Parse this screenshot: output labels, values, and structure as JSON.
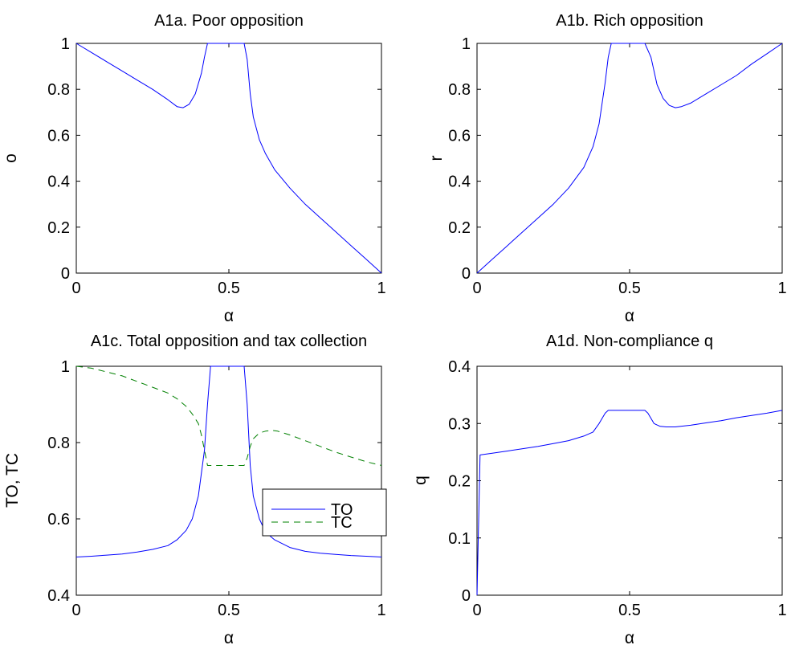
{
  "chart_data": [
    {
      "type": "line",
      "title": "A1a. Poor opposition",
      "xlabel": "α",
      "ylabel": "o",
      "xlim": [
        0,
        1
      ],
      "ylim": [
        0,
        1
      ],
      "xticks": [
        "0",
        "0.5",
        "1"
      ],
      "yticks": [
        "0",
        "0.2",
        "0.4",
        "0.6",
        "0.8",
        "1"
      ],
      "grid": false,
      "series": [
        {
          "color": "#0000ff",
          "dash": "solid",
          "x": [
            0,
            0.05,
            0.1,
            0.15,
            0.2,
            0.25,
            0.3,
            0.33,
            0.35,
            0.37,
            0.39,
            0.41,
            0.42,
            0.43,
            0.5,
            0.55,
            0.56,
            0.57,
            0.58,
            0.6,
            0.62,
            0.65,
            0.7,
            0.75,
            0.8,
            0.85,
            0.9,
            0.95,
            1.0
          ],
          "y": [
            1.0,
            0.96,
            0.92,
            0.88,
            0.84,
            0.8,
            0.755,
            0.725,
            0.72,
            0.735,
            0.78,
            0.87,
            0.94,
            1.0,
            1.0,
            1.0,
            0.93,
            0.78,
            0.68,
            0.58,
            0.52,
            0.45,
            0.37,
            0.3,
            0.24,
            0.18,
            0.12,
            0.06,
            0.0
          ]
        }
      ]
    },
    {
      "type": "line",
      "title": "A1b. Rich opposition",
      "xlabel": "α",
      "ylabel": "r",
      "xlim": [
        0,
        1
      ],
      "ylim": [
        0,
        1
      ],
      "xticks": [
        "0",
        "0.5",
        "1"
      ],
      "yticks": [
        "0",
        "0.2",
        "0.4",
        "0.6",
        "0.8",
        "1"
      ],
      "grid": false,
      "series": [
        {
          "color": "#0000ff",
          "dash": "solid",
          "x": [
            0,
            0.05,
            0.1,
            0.15,
            0.2,
            0.25,
            0.3,
            0.35,
            0.38,
            0.4,
            0.42,
            0.43,
            0.44,
            0.45,
            0.5,
            0.55,
            0.57,
            0.59,
            0.61,
            0.63,
            0.65,
            0.67,
            0.7,
            0.75,
            0.8,
            0.85,
            0.9,
            0.95,
            1.0
          ],
          "y": [
            0.0,
            0.06,
            0.12,
            0.18,
            0.24,
            0.3,
            0.37,
            0.46,
            0.55,
            0.65,
            0.83,
            0.94,
            1.0,
            1.0,
            1.0,
            1.0,
            0.94,
            0.82,
            0.76,
            0.73,
            0.72,
            0.725,
            0.74,
            0.78,
            0.82,
            0.86,
            0.91,
            0.955,
            1.0
          ]
        }
      ]
    },
    {
      "type": "line",
      "title": "A1c. Total opposition and tax collection",
      "xlabel": "α",
      "ylabel": "TO, TC",
      "xlim": [
        0,
        1
      ],
      "ylim": [
        0.4,
        1
      ],
      "xticks": [
        "0",
        "0.5",
        "1"
      ],
      "yticks": [
        "0.4",
        "0.6",
        "0.8",
        "1"
      ],
      "grid": false,
      "legend": "center-right",
      "series": [
        {
          "name": "TO",
          "color": "#0000ff",
          "dash": "solid",
          "x": [
            0,
            0.05,
            0.1,
            0.15,
            0.2,
            0.25,
            0.3,
            0.33,
            0.36,
            0.38,
            0.4,
            0.42,
            0.43,
            0.44,
            0.5,
            0.55,
            0.56,
            0.57,
            0.58,
            0.6,
            0.62,
            0.65,
            0.7,
            0.75,
            0.8,
            0.85,
            0.9,
            0.95,
            1.0
          ],
          "y": [
            0.5,
            0.502,
            0.505,
            0.508,
            0.513,
            0.52,
            0.53,
            0.545,
            0.57,
            0.6,
            0.66,
            0.78,
            0.9,
            1.0,
            1.0,
            1.0,
            0.9,
            0.74,
            0.66,
            0.6,
            0.565,
            0.545,
            0.525,
            0.515,
            0.51,
            0.507,
            0.504,
            0.502,
            0.5
          ]
        },
        {
          "name": "TC",
          "color": "#008000",
          "dash": "dashed",
          "x": [
            0,
            0.05,
            0.1,
            0.15,
            0.2,
            0.25,
            0.3,
            0.33,
            0.36,
            0.38,
            0.4,
            0.41,
            0.42,
            0.43,
            0.5,
            0.55,
            0.56,
            0.57,
            0.58,
            0.6,
            0.62,
            0.64,
            0.66,
            0.7,
            0.75,
            0.8,
            0.85,
            0.9,
            0.95,
            1.0
          ],
          "y": [
            1.0,
            0.995,
            0.985,
            0.975,
            0.96,
            0.945,
            0.93,
            0.915,
            0.895,
            0.875,
            0.85,
            0.82,
            0.78,
            0.74,
            0.74,
            0.74,
            0.76,
            0.79,
            0.81,
            0.825,
            0.83,
            0.832,
            0.83,
            0.82,
            0.805,
            0.79,
            0.775,
            0.762,
            0.75,
            0.74
          ]
        }
      ]
    },
    {
      "type": "line",
      "title": "A1d. Non-compliance q",
      "xlabel": "α",
      "ylabel": "q",
      "xlim": [
        0,
        1
      ],
      "ylim": [
        0,
        0.4
      ],
      "xticks": [
        "0",
        "0.5",
        "1"
      ],
      "yticks": [
        "0",
        "0.1",
        "0.2",
        "0.3",
        "0.4"
      ],
      "grid": false,
      "series": [
        {
          "color": "#0000ff",
          "dash": "solid",
          "x": [
            0,
            0.01,
            0.05,
            0.1,
            0.15,
            0.2,
            0.25,
            0.3,
            0.35,
            0.38,
            0.4,
            0.42,
            0.43,
            0.5,
            0.55,
            0.56,
            0.58,
            0.6,
            0.62,
            0.65,
            0.7,
            0.75,
            0.8,
            0.85,
            0.9,
            0.95,
            1.0
          ],
          "y": [
            0.0,
            0.245,
            0.248,
            0.252,
            0.256,
            0.26,
            0.265,
            0.27,
            0.278,
            0.285,
            0.3,
            0.318,
            0.323,
            0.323,
            0.323,
            0.318,
            0.3,
            0.295,
            0.294,
            0.294,
            0.297,
            0.301,
            0.305,
            0.31,
            0.314,
            0.318,
            0.323
          ]
        }
      ]
    }
  ]
}
